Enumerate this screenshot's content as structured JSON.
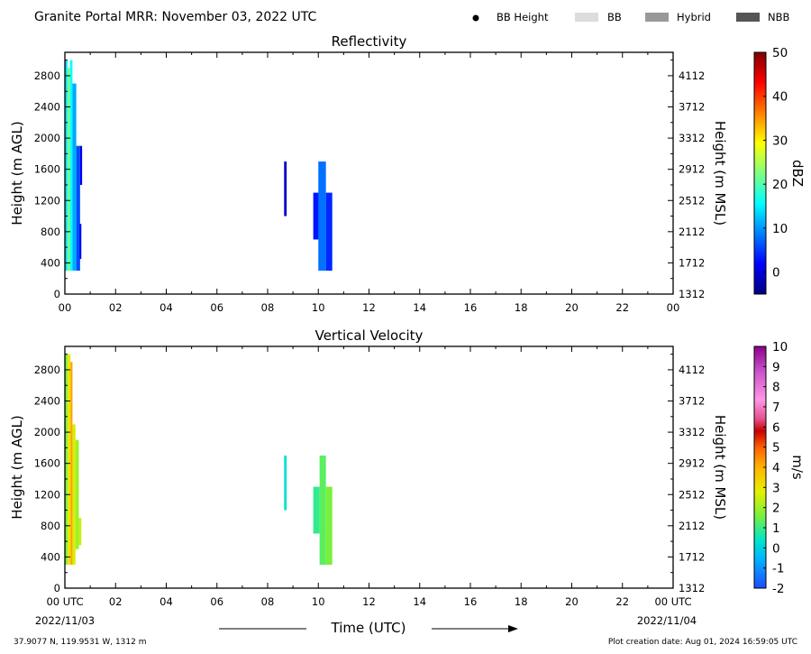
{
  "header": {
    "title": "Granite Portal MRR:  November 03, 2022 UTC",
    "legend": [
      {
        "label": "BB Height",
        "kind": "dot",
        "color": "#000000"
      },
      {
        "label": "BB",
        "kind": "rect",
        "color": "#dcdcdc"
      },
      {
        "label": "Hybrid",
        "kind": "rect",
        "color": "#999999"
      },
      {
        "label": "NBB",
        "kind": "rect",
        "color": "#555555"
      }
    ]
  },
  "chart_data": [
    {
      "type": "heatmap",
      "title": "Reflectivity",
      "ylabel": "Height (m AGL)",
      "ylabel_right": "Height (m MSL)",
      "xlim": [
        0,
        24
      ],
      "ylim": [
        0,
        3100
      ],
      "x_ticks": [
        "00",
        "02",
        "04",
        "06",
        "08",
        "10",
        "12",
        "14",
        "16",
        "18",
        "20",
        "22",
        "00"
      ],
      "y_ticks": [
        "0",
        "400",
        "800",
        "1200",
        "1600",
        "2000",
        "2400",
        "2800"
      ],
      "y_ticks_right": [
        "1312",
        "1712",
        "2112",
        "2512",
        "2912",
        "3312",
        "3712",
        "4112"
      ],
      "colorbar": {
        "label": "dBZ",
        "range": [
          -5,
          50
        ],
        "ticks": [
          "0",
          "10",
          "20",
          "30",
          "40",
          "50"
        ],
        "colormap": "jet"
      },
      "cells": [
        {
          "t0": 0.0,
          "t1": 0.1,
          "h0": 300,
          "h1": 3000,
          "v": 14
        },
        {
          "t0": 0.1,
          "t1": 0.2,
          "h0": 300,
          "h1": 2900,
          "v": 22
        },
        {
          "t0": 0.2,
          "t1": 0.3,
          "h0": 300,
          "h1": 3000,
          "v": 16
        },
        {
          "t0": 0.3,
          "t1": 0.45,
          "h0": 300,
          "h1": 2700,
          "v": 11
        },
        {
          "t0": 0.45,
          "t1": 0.6,
          "h0": 300,
          "h1": 1900,
          "v": 6
        },
        {
          "t0": 0.6,
          "t1": 0.68,
          "h0": 1400,
          "h1": 1900,
          "v": 1
        },
        {
          "t0": 0.58,
          "t1": 0.65,
          "h0": 450,
          "h1": 900,
          "v": 2
        },
        {
          "t0": 8.65,
          "t1": 8.75,
          "h0": 1000,
          "h1": 1700,
          "v": -1
        },
        {
          "t0": 9.8,
          "t1": 10.1,
          "h0": 700,
          "h1": 1300,
          "v": 3
        },
        {
          "t0": 10.0,
          "t1": 10.3,
          "h0": 300,
          "h1": 1700,
          "v": 8
        },
        {
          "t0": 10.3,
          "t1": 10.55,
          "h0": 300,
          "h1": 1300,
          "v": 4
        }
      ]
    },
    {
      "type": "heatmap",
      "title": "Vertical Velocity",
      "ylabel": "Height (m AGL)",
      "ylabel_right": "Height (m MSL)",
      "xlabel": "Time (UTC)",
      "xlim": [
        0,
        24
      ],
      "ylim": [
        0,
        3100
      ],
      "x_ticks": [
        "00 UTC",
        "02",
        "04",
        "06",
        "08",
        "10",
        "12",
        "14",
        "16",
        "18",
        "20",
        "22",
        "00 UTC"
      ],
      "y_ticks": [
        "0",
        "400",
        "800",
        "1200",
        "1600",
        "2000",
        "2400",
        "2800"
      ],
      "y_ticks_right": [
        "1312",
        "1712",
        "2112",
        "2512",
        "2912",
        "3312",
        "3712",
        "4112"
      ],
      "colorbar": {
        "label": "m/s",
        "range": [
          -2,
          10
        ],
        "ticks": [
          "-2",
          "-1",
          "0",
          "1",
          "2",
          "3",
          "4",
          "5",
          "6",
          "7",
          "8",
          "9",
          "10"
        ],
        "colormap": "velocity"
      },
      "cells": [
        {
          "t0": 0.0,
          "t1": 0.1,
          "h0": 300,
          "h1": 3000,
          "v": 1.5
        },
        {
          "t0": 0.1,
          "t1": 0.22,
          "h0": 300,
          "h1": 3000,
          "v": 3.0
        },
        {
          "t0": 0.22,
          "t1": 0.3,
          "h0": 300,
          "h1": 2900,
          "v": 4.2
        },
        {
          "t0": 0.3,
          "t1": 0.42,
          "h0": 300,
          "h1": 2100,
          "v": 2.6
        },
        {
          "t0": 0.42,
          "t1": 0.55,
          "h0": 500,
          "h1": 1900,
          "v": 2.0
        },
        {
          "t0": 0.55,
          "t1": 0.65,
          "h0": 550,
          "h1": 900,
          "v": 2.4
        },
        {
          "t0": 8.65,
          "t1": 8.75,
          "h0": 1000,
          "h1": 1700,
          "v": 0.3
        },
        {
          "t0": 9.8,
          "t1": 10.05,
          "h0": 700,
          "h1": 1300,
          "v": 0.9
        },
        {
          "t0": 10.05,
          "t1": 10.3,
          "h0": 300,
          "h1": 1700,
          "v": 1.3
        },
        {
          "t0": 10.3,
          "t1": 10.55,
          "h0": 300,
          "h1": 1300,
          "v": 1.6
        }
      ]
    }
  ],
  "footer": {
    "date_start": "2022/11/03",
    "date_end": "2022/11/04",
    "location": "37.9077 N, 119.9531 W, 1312 m",
    "created": "Plot creation date: Aug 01, 2024 16:59:05 UTC"
  }
}
